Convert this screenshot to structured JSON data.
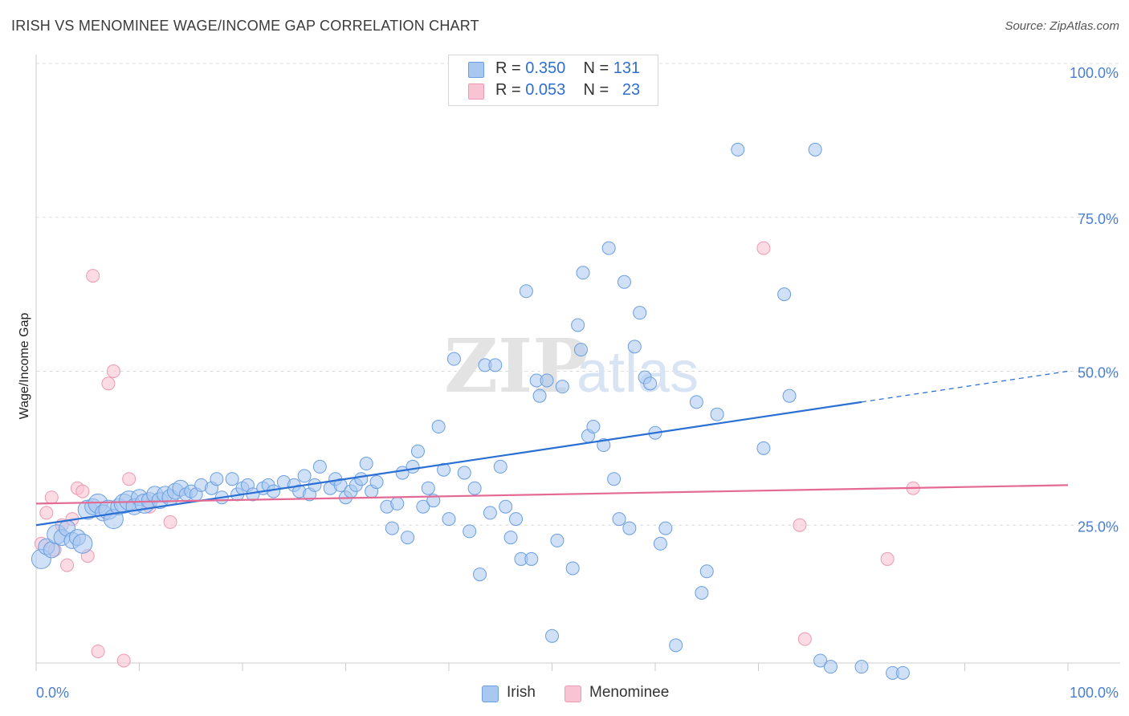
{
  "header": {
    "title": "IRISH VS MENOMINEE WAGE/INCOME GAP CORRELATION CHART",
    "source": "Source: ZipAtlas.com"
  },
  "legend": {
    "irish": {
      "r_label": "R = ",
      "r_value": "0.350",
      "n_label": "N = ",
      "n_value": "131"
    },
    "menominee": {
      "r_label": "R = ",
      "r_value": "0.053",
      "n_label": "N = ",
      "n_value": "23"
    }
  },
  "bottom_legend": {
    "irish": "Irish",
    "menominee": "Menominee"
  },
  "watermark": {
    "zip": "ZIP",
    "atlas": "atlas"
  },
  "colors": {
    "irish_fill": "#a9c8f0",
    "irish_stroke": "#6a9ee0",
    "irish_line": "#2a6fd4",
    "menominee_fill": "#f8c3d2",
    "menominee_stroke": "#ec9ab3",
    "menominee_line": "#e46a94",
    "tick": "#4a7fd0",
    "grid": "#dddddd"
  },
  "chart_data": {
    "type": "scatter",
    "title": "IRISH VS MENOMINEE WAGE/INCOME GAP CORRELATION CHART",
    "xlabel": "",
    "ylabel": "Wage/Income Gap",
    "xlim": [
      0,
      100
    ],
    "ylim": [
      0,
      100
    ],
    "x_tick_labels": [
      "0.0%",
      "100.0%"
    ],
    "y_tick_labels": [
      {
        "value": 100,
        "label": "100.0%"
      },
      {
        "value": 75,
        "label": "75.0%"
      },
      {
        "value": 50,
        "label": "50.0%"
      },
      {
        "value": 25,
        "label": "25.0%"
      }
    ],
    "grid": true,
    "legend_position": "top-center",
    "series": [
      {
        "name": "Irish",
        "r": 0.35,
        "n": 131,
        "trend": {
          "x0": 0,
          "y0": 25.0,
          "x1": 80,
          "y1": 45.0,
          "dashed_to_x": 100,
          "dashed_to_y": 50.0
        },
        "points": [
          [
            0.5,
            19.5,
            5
          ],
          [
            1.0,
            21.5,
            4
          ],
          [
            1.5,
            21.0,
            4
          ],
          [
            2.0,
            23.5,
            5
          ],
          [
            2.5,
            23.0,
            4
          ],
          [
            3.0,
            24.5,
            4
          ],
          [
            3.5,
            22.5,
            4
          ],
          [
            4.0,
            23.0,
            4
          ],
          [
            4.5,
            22.0,
            5
          ],
          [
            5.0,
            27.5,
            5
          ],
          [
            5.5,
            28.0,
            4
          ],
          [
            6.0,
            28.5,
            5
          ],
          [
            6.5,
            27.0,
            4
          ],
          [
            7.0,
            27.5,
            5
          ],
          [
            7.5,
            26.0,
            5
          ],
          [
            8.0,
            28.0,
            4
          ],
          [
            8.5,
            28.5,
            5
          ],
          [
            9.0,
            29.0,
            5
          ],
          [
            9.5,
            28.0,
            4
          ],
          [
            10.0,
            29.5,
            4
          ],
          [
            10.5,
            28.5,
            5
          ],
          [
            11.0,
            29.0,
            4
          ],
          [
            11.5,
            30.0,
            4
          ],
          [
            12.0,
            29.0,
            4
          ],
          [
            12.5,
            30.0,
            4
          ],
          [
            13.0,
            29.5,
            4
          ],
          [
            13.5,
            30.5,
            4
          ],
          [
            14.0,
            31.0,
            4
          ],
          [
            14.5,
            30.0,
            3
          ],
          [
            15.0,
            30.5,
            3
          ],
          [
            15.5,
            30.0,
            3
          ],
          [
            16.0,
            31.5,
            3
          ],
          [
            17.0,
            31.0,
            3
          ],
          [
            17.5,
            32.5,
            3
          ],
          [
            18.0,
            29.5,
            3
          ],
          [
            19.0,
            32.5,
            3
          ],
          [
            19.5,
            30.0,
            3
          ],
          [
            20.0,
            31.0,
            3
          ],
          [
            20.5,
            31.5,
            3
          ],
          [
            21.0,
            30.0,
            3
          ],
          [
            22.0,
            31.0,
            3
          ],
          [
            22.5,
            31.5,
            3
          ],
          [
            23.0,
            30.5,
            3
          ],
          [
            24.0,
            32.0,
            3
          ],
          [
            25.0,
            31.5,
            3
          ],
          [
            25.5,
            30.5,
            3
          ],
          [
            26.0,
            33.0,
            3
          ],
          [
            26.5,
            30.0,
            3
          ],
          [
            27.0,
            31.5,
            3
          ],
          [
            27.5,
            34.5,
            3
          ],
          [
            28.5,
            31.0,
            3
          ],
          [
            29.0,
            32.5,
            3
          ],
          [
            29.5,
            31.5,
            3
          ],
          [
            30.0,
            29.5,
            3
          ],
          [
            30.5,
            30.5,
            3
          ],
          [
            31.0,
            31.5,
            3
          ],
          [
            31.5,
            32.5,
            3
          ],
          [
            32.0,
            35.0,
            3
          ],
          [
            32.5,
            30.5,
            3
          ],
          [
            33.0,
            32.0,
            3
          ],
          [
            34.0,
            28.0,
            3
          ],
          [
            34.5,
            24.5,
            3
          ],
          [
            35.0,
            28.5,
            3
          ],
          [
            35.5,
            33.5,
            3
          ],
          [
            36.0,
            23.0,
            3
          ],
          [
            36.5,
            34.5,
            3
          ],
          [
            37.0,
            37.0,
            3
          ],
          [
            37.5,
            28.0,
            3
          ],
          [
            38.0,
            31.0,
            3
          ],
          [
            38.5,
            29.0,
            3
          ],
          [
            39.0,
            41.0,
            3
          ],
          [
            39.5,
            34.0,
            3
          ],
          [
            40.0,
            26.0,
            3
          ],
          [
            40.5,
            52.0,
            3
          ],
          [
            41.5,
            33.5,
            3
          ],
          [
            42.0,
            24.0,
            3
          ],
          [
            42.5,
            31.0,
            3
          ],
          [
            43.0,
            17.0,
            3
          ],
          [
            43.5,
            51.0,
            3
          ],
          [
            44.0,
            27.0,
            3
          ],
          [
            44.5,
            51.0,
            3
          ],
          [
            45.0,
            34.5,
            3
          ],
          [
            45.5,
            28.0,
            3
          ],
          [
            46.0,
            23.0,
            3
          ],
          [
            46.5,
            26.0,
            3
          ],
          [
            47.0,
            19.5,
            3
          ],
          [
            47.5,
            63.0,
            3
          ],
          [
            48.0,
            19.5,
            3
          ],
          [
            48.5,
            48.5,
            3
          ],
          [
            48.8,
            46.0,
            3
          ],
          [
            49.5,
            48.5,
            3
          ],
          [
            50.0,
            7.0,
            3
          ],
          [
            50.5,
            22.5,
            3
          ],
          [
            51.0,
            47.5,
            3
          ],
          [
            52.0,
            18.0,
            3
          ],
          [
            52.5,
            57.5,
            3
          ],
          [
            52.8,
            53.5,
            3
          ],
          [
            53.0,
            66.0,
            3
          ],
          [
            53.5,
            39.5,
            3
          ],
          [
            54.0,
            41.0,
            3
          ],
          [
            55.0,
            38.0,
            3
          ],
          [
            55.5,
            70.0,
            3
          ],
          [
            56.0,
            32.5,
            3
          ],
          [
            56.5,
            26.0,
            3
          ],
          [
            57.0,
            64.5,
            3
          ],
          [
            57.5,
            24.5,
            3
          ],
          [
            58.0,
            54.0,
            3
          ],
          [
            58.5,
            59.5,
            3
          ],
          [
            59.0,
            49.0,
            3
          ],
          [
            59.5,
            48.0,
            3
          ],
          [
            60.0,
            40.0,
            3
          ],
          [
            60.5,
            22.0,
            3
          ],
          [
            61.0,
            24.5,
            3
          ],
          [
            62.0,
            5.5,
            3
          ],
          [
            64.0,
            45.0,
            3
          ],
          [
            64.5,
            14.0,
            3
          ],
          [
            65.0,
            17.5,
            3
          ],
          [
            66.0,
            43.0,
            3
          ],
          [
            68.0,
            86.0,
            3
          ],
          [
            70.5,
            37.5,
            3
          ],
          [
            72.5,
            62.5,
            3
          ],
          [
            73.0,
            46.0,
            3
          ],
          [
            75.5,
            86.0,
            3
          ],
          [
            76.0,
            3.0,
            3
          ],
          [
            77.0,
            2.0,
            3
          ],
          [
            80.0,
            2.0,
            3
          ],
          [
            83.0,
            1.0,
            3
          ],
          [
            84.0,
            1.0,
            3
          ]
        ]
      },
      {
        "name": "Menominee",
        "r": 0.053,
        "n": 23,
        "trend": {
          "x0": 0,
          "y0": 28.5,
          "x1": 100,
          "y1": 31.5
        },
        "points": [
          [
            0.5,
            22.0
          ],
          [
            1.0,
            27.0
          ],
          [
            1.5,
            29.5
          ],
          [
            1.8,
            21.0
          ],
          [
            2.5,
            25.0
          ],
          [
            3.0,
            18.5
          ],
          [
            3.5,
            26.0
          ],
          [
            4.0,
            31.0
          ],
          [
            4.5,
            30.5
          ],
          [
            5.0,
            20.0
          ],
          [
            5.5,
            65.5
          ],
          [
            6.0,
            4.5
          ],
          [
            7.0,
            48.0
          ],
          [
            7.5,
            50.0
          ],
          [
            8.5,
            3.0
          ],
          [
            9.0,
            32.5
          ],
          [
            11.0,
            28.0
          ],
          [
            13.0,
            25.5
          ],
          [
            70.5,
            70.0
          ],
          [
            74.0,
            25.0
          ],
          [
            74.5,
            6.5
          ],
          [
            82.5,
            19.5
          ],
          [
            85.0,
            31.0
          ]
        ]
      }
    ]
  }
}
